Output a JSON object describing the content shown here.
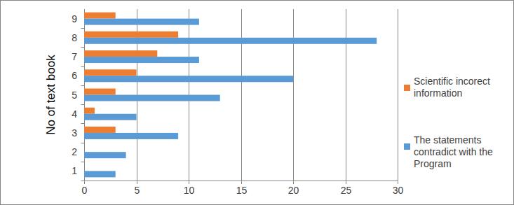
{
  "chart_data": {
    "type": "bar",
    "orientation": "horizontal",
    "y_label": "No of text book",
    "categories": [
      "1",
      "2",
      "3",
      "4",
      "5",
      "6",
      "7",
      "8",
      "9"
    ],
    "series": [
      {
        "name": "Scientific incorect information",
        "color": "#ed7d31",
        "values": [
          0,
          0,
          3,
          1,
          3,
          5,
          7,
          9,
          3
        ]
      },
      {
        "name": "The statements contradict with the Program",
        "color": "#5b9bd5",
        "values": [
          3,
          4,
          9,
          5,
          13,
          20,
          11,
          28,
          11
        ]
      }
    ],
    "xlim": [
      0,
      30
    ],
    "xticks": [
      0,
      5,
      10,
      15,
      20,
      25,
      30
    ],
    "grid": true,
    "legend": "right"
  }
}
